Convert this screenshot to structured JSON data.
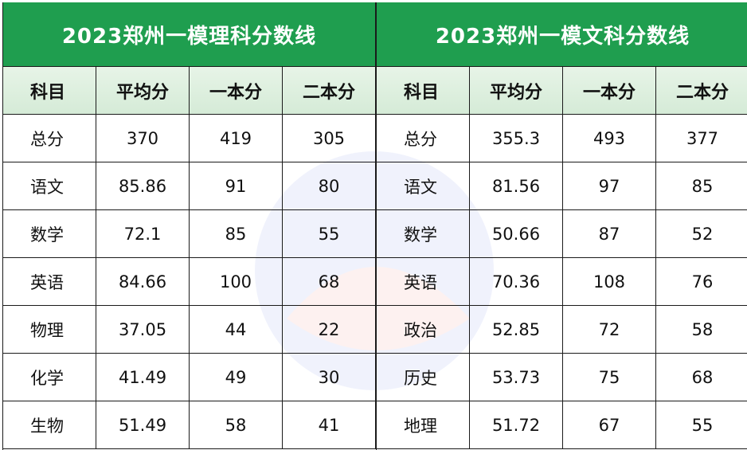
{
  "colors": {
    "title_bg": "#1f9e4f",
    "header_bg": "#e0f1e1",
    "text": "#111111"
  },
  "left": {
    "title": "2023郑州一模理科分数线",
    "headers": [
      "科目",
      "平均分",
      "一本分",
      "二本分"
    ],
    "rows": [
      [
        "总分",
        "370",
        "419",
        "305"
      ],
      [
        "语文",
        "85.86",
        "91",
        "80"
      ],
      [
        "数学",
        "72.1",
        "85",
        "55"
      ],
      [
        "英语",
        "84.66",
        "100",
        "68"
      ],
      [
        "物理",
        "37.05",
        "44",
        "22"
      ],
      [
        "化学",
        "41.49",
        "49",
        "30"
      ],
      [
        "生物",
        "51.49",
        "58",
        "41"
      ]
    ]
  },
  "right": {
    "title": "2023郑州一模文科分数线",
    "headers": [
      "科目",
      "平均分",
      "一本分",
      "二本分"
    ],
    "rows": [
      [
        "总分",
        "355.3",
        "493",
        "377"
      ],
      [
        "语文",
        "81.56",
        "97",
        "85"
      ],
      [
        "数学",
        "50.66",
        "87",
        "52"
      ],
      [
        "英语",
        "70.36",
        "108",
        "76"
      ],
      [
        "政治",
        "52.85",
        "72",
        "58"
      ],
      [
        "历史",
        "53.73",
        "75",
        "68"
      ],
      [
        "地理",
        "51.72",
        "67",
        "55"
      ]
    ]
  }
}
